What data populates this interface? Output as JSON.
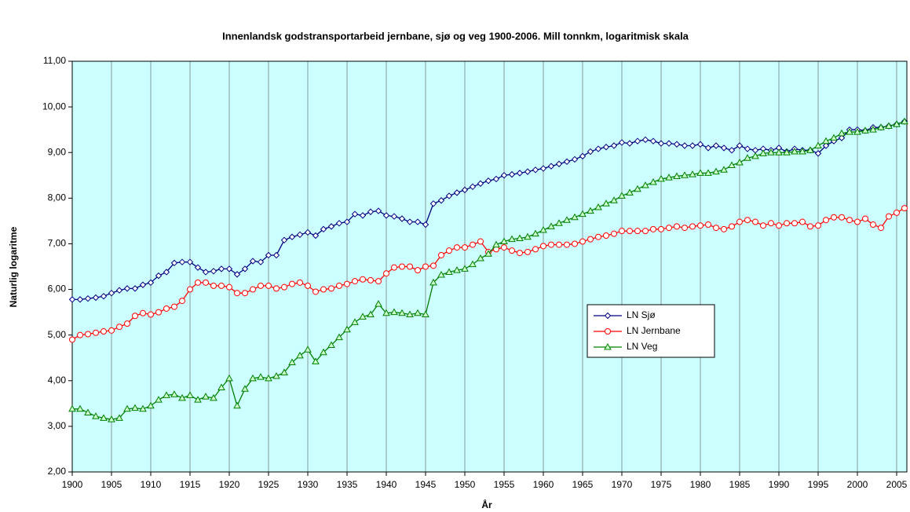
{
  "chart_data": {
    "type": "line",
    "title": "Innenlandsk godstransportarbeid jernbane, sjø og veg 1900-2006. Mill tonnkm, logaritmisk skala",
    "x_label": "År",
    "y_label": "Naturlig logaritme",
    "x": [
      1900,
      1901,
      1902,
      1903,
      1904,
      1905,
      1906,
      1907,
      1908,
      1909,
      1910,
      1911,
      1912,
      1913,
      1914,
      1915,
      1916,
      1917,
      1918,
      1919,
      1920,
      1921,
      1922,
      1923,
      1924,
      1925,
      1926,
      1927,
      1928,
      1929,
      1930,
      1931,
      1932,
      1933,
      1934,
      1935,
      1936,
      1937,
      1938,
      1939,
      1940,
      1941,
      1942,
      1943,
      1944,
      1945,
      1946,
      1947,
      1948,
      1949,
      1950,
      1951,
      1952,
      1953,
      1954,
      1955,
      1956,
      1957,
      1958,
      1959,
      1960,
      1961,
      1962,
      1963,
      1964,
      1965,
      1966,
      1967,
      1968,
      1969,
      1970,
      1971,
      1972,
      1973,
      1974,
      1975,
      1976,
      1977,
      1978,
      1979,
      1980,
      1981,
      1982,
      1983,
      1984,
      1985,
      1986,
      1987,
      1988,
      1989,
      1990,
      1991,
      1992,
      1993,
      1994,
      1995,
      1996,
      1997,
      1998,
      1999,
      2000,
      2001,
      2002,
      2003,
      2004,
      2005,
      2006
    ],
    "series": [
      {
        "name": "LN Sjø",
        "color": "#000080",
        "marker": "diamond",
        "values": [
          5.78,
          5.78,
          5.8,
          5.82,
          5.85,
          5.92,
          5.98,
          6.02,
          6.02,
          6.1,
          6.15,
          6.3,
          6.38,
          6.58,
          6.6,
          6.6,
          6.48,
          6.38,
          6.4,
          6.45,
          6.45,
          6.33,
          6.45,
          6.62,
          6.6,
          6.75,
          6.75,
          7.08,
          7.15,
          7.2,
          7.25,
          7.18,
          7.32,
          7.38,
          7.45,
          7.48,
          7.65,
          7.62,
          7.7,
          7.72,
          7.62,
          7.6,
          7.55,
          7.48,
          7.48,
          7.42,
          7.88,
          7.95,
          8.05,
          8.12,
          8.18,
          8.25,
          8.32,
          8.38,
          8.42,
          8.5,
          8.52,
          8.55,
          8.58,
          8.62,
          8.65,
          8.7,
          8.75,
          8.8,
          8.85,
          8.92,
          9.02,
          9.08,
          9.12,
          9.15,
          9.22,
          9.2,
          9.25,
          9.28,
          9.25,
          9.2,
          9.2,
          9.18,
          9.15,
          9.15,
          9.18,
          9.1,
          9.15,
          9.1,
          9.05,
          9.15,
          9.08,
          9.05,
          9.08,
          9.05,
          9.1,
          9.02,
          9.08,
          9.05,
          9.05,
          8.98,
          9.15,
          9.25,
          9.32,
          9.5,
          9.5,
          9.48,
          9.55,
          9.55,
          9.58,
          9.62,
          9.68
        ]
      },
      {
        "name": "LN Jernbane",
        "color": "#ff0000",
        "marker": "circle",
        "values": [
          4.9,
          5.0,
          5.02,
          5.05,
          5.08,
          5.1,
          5.18,
          5.25,
          5.42,
          5.48,
          5.45,
          5.5,
          5.58,
          5.62,
          5.75,
          6.0,
          6.15,
          6.15,
          6.08,
          6.08,
          6.05,
          5.92,
          5.92,
          6.0,
          6.08,
          6.08,
          6.02,
          6.05,
          6.12,
          6.15,
          6.08,
          5.95,
          6.0,
          6.02,
          6.08,
          6.12,
          6.18,
          6.22,
          6.2,
          6.18,
          6.35,
          6.48,
          6.5,
          6.5,
          6.42,
          6.5,
          6.52,
          6.75,
          6.85,
          6.92,
          6.92,
          6.98,
          7.05,
          6.82,
          6.88,
          6.92,
          6.85,
          6.8,
          6.82,
          6.88,
          6.95,
          6.98,
          6.98,
          6.98,
          7.0,
          7.05,
          7.1,
          7.15,
          7.18,
          7.22,
          7.28,
          7.28,
          7.28,
          7.28,
          7.32,
          7.32,
          7.35,
          7.38,
          7.35,
          7.38,
          7.4,
          7.42,
          7.35,
          7.32,
          7.38,
          7.48,
          7.52,
          7.48,
          7.4,
          7.45,
          7.4,
          7.45,
          7.45,
          7.48,
          7.38,
          7.4,
          7.52,
          7.58,
          7.58,
          7.52,
          7.48,
          7.55,
          7.42,
          7.35,
          7.6,
          7.68,
          7.78
        ]
      },
      {
        "name": "LN Veg",
        "color": "#008000",
        "marker": "triangle",
        "values": [
          3.38,
          3.38,
          3.3,
          3.22,
          3.18,
          3.15,
          3.18,
          3.38,
          3.4,
          3.38,
          3.45,
          3.58,
          3.68,
          3.7,
          3.62,
          3.68,
          3.58,
          3.65,
          3.62,
          3.85,
          4.05,
          3.45,
          3.82,
          4.05,
          4.08,
          4.05,
          4.1,
          4.18,
          4.4,
          4.55,
          4.68,
          4.42,
          4.62,
          4.78,
          4.95,
          5.12,
          5.28,
          5.4,
          5.45,
          5.68,
          5.48,
          5.5,
          5.48,
          5.45,
          5.48,
          5.45,
          6.15,
          6.32,
          6.38,
          6.42,
          6.45,
          6.55,
          6.68,
          6.78,
          6.98,
          7.05,
          7.1,
          7.12,
          7.15,
          7.22,
          7.3,
          7.38,
          7.45,
          7.52,
          7.58,
          7.65,
          7.72,
          7.8,
          7.88,
          7.95,
          8.05,
          8.12,
          8.2,
          8.28,
          8.35,
          8.42,
          8.45,
          8.48,
          8.5,
          8.52,
          8.55,
          8.55,
          8.58,
          8.62,
          8.72,
          8.78,
          8.88,
          8.92,
          8.98,
          9.0,
          9.0,
          9.0,
          9.02,
          9.02,
          9.05,
          9.15,
          9.25,
          9.32,
          9.42,
          9.45,
          9.45,
          9.48,
          9.5,
          9.55,
          9.58,
          9.62,
          9.68
        ]
      }
    ],
    "xlim": [
      1900,
      2006.3
    ],
    "xticks": [
      1900,
      1905,
      1910,
      1915,
      1920,
      1925,
      1930,
      1935,
      1940,
      1945,
      1950,
      1955,
      1960,
      1965,
      1970,
      1975,
      1980,
      1985,
      1990,
      1995,
      2000,
      2005
    ],
    "ylim": [
      2,
      11
    ],
    "yticks": [
      {
        "value": 2,
        "label": "2,00"
      },
      {
        "value": 3,
        "label": "3,00"
      },
      {
        "value": 4,
        "label": "4,00"
      },
      {
        "value": 5,
        "label": "5,00"
      },
      {
        "value": 6,
        "label": "6,00"
      },
      {
        "value": 7,
        "label": "7,00"
      },
      {
        "value": 8,
        "label": "8,00"
      },
      {
        "value": 9,
        "label": "9,00"
      },
      {
        "value": 10,
        "label": "10,00"
      },
      {
        "value": 11,
        "label": "11,00"
      }
    ],
    "grid": "x",
    "plot_background": "#ccffff",
    "legend": "center-right"
  }
}
